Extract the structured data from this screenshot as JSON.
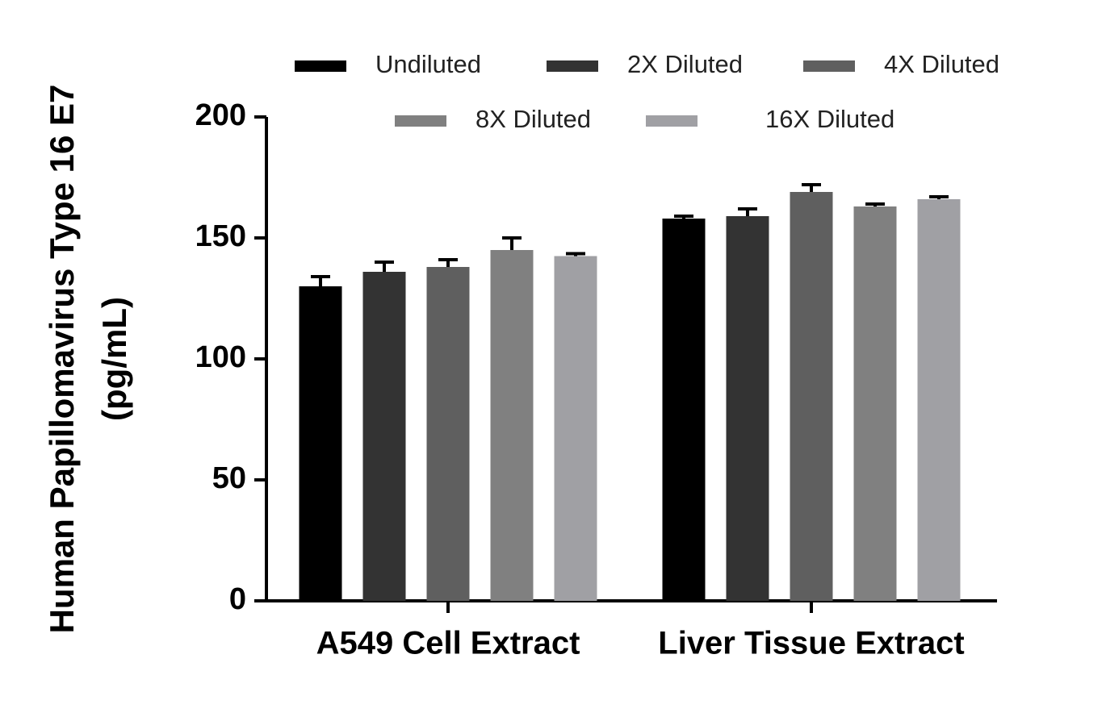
{
  "chart_data": {
    "type": "bar",
    "ylabel": [
      "Human Papillomavirus Type 16 E7",
      "(pg/mL)"
    ],
    "categories": [
      "A549 Cell Extract",
      "Liver Tissue Extract"
    ],
    "series": [
      {
        "name": "Undiluted",
        "color": "#000000",
        "values": [
          130,
          158
        ],
        "errors": [
          4,
          1
        ]
      },
      {
        "name": "2X Diluted",
        "color": "#333333",
        "values": [
          136,
          159
        ],
        "errors": [
          4,
          3
        ]
      },
      {
        "name": "4X Diluted",
        "color": "#5f5f5f",
        "values": [
          138,
          169
        ],
        "errors": [
          3,
          3
        ]
      },
      {
        "name": "8X Diluted",
        "color": "#808080",
        "values": [
          145,
          163
        ],
        "errors": [
          5,
          1
        ]
      },
      {
        "name": "16X Diluted",
        "color": "#a0a0a4",
        "values": [
          142.5,
          166
        ],
        "errors": [
          1,
          1
        ]
      }
    ],
    "ylim": [
      0,
      200
    ],
    "yticks": [
      0,
      50,
      100,
      150,
      200
    ],
    "grid": false
  }
}
